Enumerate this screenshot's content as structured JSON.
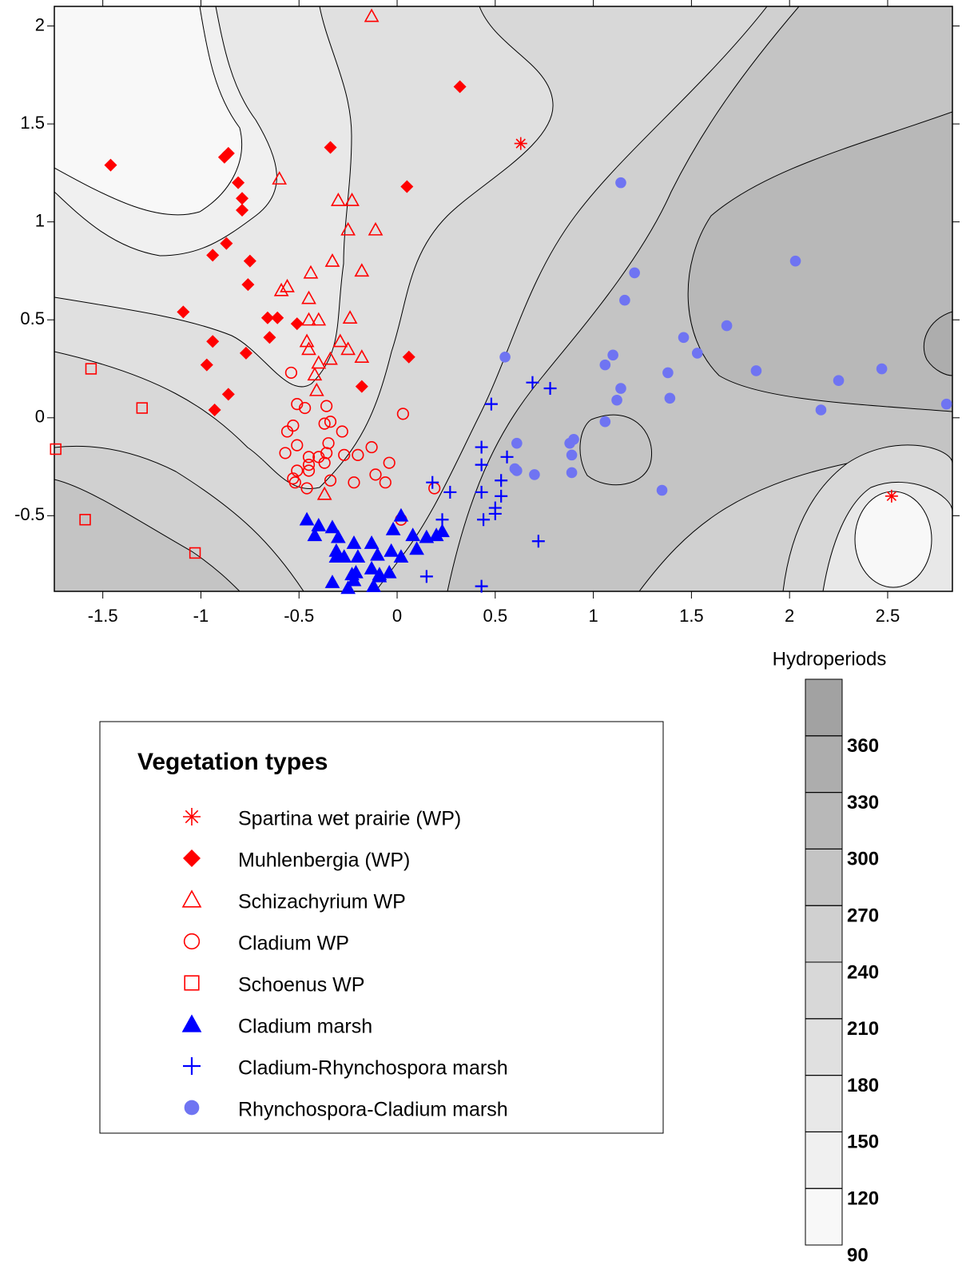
{
  "chart_data": {
    "type": "scatter",
    "xlim": [
      -1.747,
      2.83
    ],
    "ylim": [
      -0.886,
      2.1
    ],
    "xticks": [
      -1.5,
      -1,
      -0.5,
      0,
      0.5,
      1,
      1.5,
      2,
      2.5
    ],
    "yticks": [
      -0.5,
      0,
      0.5,
      1,
      1.5,
      2
    ],
    "legend_title": "Vegetation types",
    "colorbar": {
      "title": "Hydroperiods",
      "lim": [
        90,
        390
      ],
      "ticks": [
        90,
        120,
        150,
        180,
        210,
        240,
        270,
        300,
        330,
        360
      ],
      "colors": [
        "#f8f8f8",
        "#f0f0f0",
        "#e8e8e8",
        "#e0e0e0",
        "#d8d8d8",
        "#d0d0d0",
        "#c4c4c4",
        "#b8b8b8",
        "#adadad",
        "#a2a2a2"
      ]
    },
    "series": [
      {
        "name": "Spartina wet prairie (WP)",
        "color": "#ff0000",
        "marker": "asterisk",
        "x": [
          0.63,
          2.52
        ],
        "y": [
          1.4,
          -0.4
        ]
      },
      {
        "name": "Muhlenbergia (WP)",
        "color": "#ff0000",
        "marker": "diamond",
        "x": [
          -1.46,
          -0.86,
          -0.88,
          -0.81,
          -0.79,
          -0.79,
          -0.87,
          -0.94,
          -0.75,
          -0.76,
          -1.09,
          -0.34,
          0.32,
          0.05,
          -0.66,
          -0.61,
          -0.51,
          -0.65,
          -0.94,
          -0.97,
          -0.77,
          0.06,
          -0.18,
          -0.86,
          -0.93
        ],
        "y": [
          1.29,
          1.35,
          1.33,
          1.2,
          1.12,
          1.06,
          0.89,
          0.83,
          0.8,
          0.68,
          0.54,
          1.38,
          1.69,
          1.18,
          0.51,
          0.51,
          0.48,
          0.41,
          0.39,
          0.27,
          0.33,
          0.31,
          0.16,
          0.12,
          0.04
        ]
      },
      {
        "name": "Schizachyrium WP",
        "color": "#ff0000",
        "marker": "triangle-open",
        "x": [
          -0.13,
          -0.6,
          -0.3,
          -0.23,
          -0.25,
          -0.11,
          -0.33,
          -0.44,
          -0.18,
          -0.56,
          -0.59,
          -0.45,
          -0.45,
          -0.4,
          -0.24,
          -0.46,
          -0.45,
          -0.29,
          -0.25,
          -0.18,
          -0.34,
          -0.42,
          -0.4,
          -0.41,
          -0.37
        ],
        "y": [
          2.05,
          1.22,
          1.11,
          1.11,
          0.96,
          0.96,
          0.8,
          0.74,
          0.75,
          0.67,
          0.65,
          0.61,
          0.5,
          0.5,
          0.51,
          0.39,
          0.35,
          0.39,
          0.35,
          0.31,
          0.3,
          0.22,
          0.28,
          0.14,
          -0.39
        ]
      },
      {
        "name": "Cladium WP",
        "color": "#ff0000",
        "marker": "circle-open",
        "x": [
          -0.54,
          -0.51,
          -0.47,
          -0.36,
          -0.53,
          -0.56,
          -0.37,
          -0.34,
          -0.28,
          -0.51,
          -0.35,
          -0.57,
          -0.45,
          -0.45,
          -0.4,
          -0.36,
          -0.27,
          -0.2,
          -0.13,
          -0.04,
          -0.51,
          -0.53,
          -0.52,
          -0.45,
          -0.37,
          -0.34,
          -0.22,
          -0.11,
          -0.06,
          -0.46,
          0.03,
          0.19,
          0.02
        ],
        "y": [
          0.23,
          0.07,
          0.05,
          0.06,
          -0.04,
          -0.07,
          -0.03,
          -0.02,
          -0.07,
          -0.14,
          -0.13,
          -0.18,
          -0.2,
          -0.24,
          -0.2,
          -0.18,
          -0.19,
          -0.19,
          -0.15,
          -0.23,
          -0.27,
          -0.31,
          -0.33,
          -0.27,
          -0.23,
          -0.32,
          -0.33,
          -0.29,
          -0.33,
          -0.36,
          0.02,
          -0.36,
          -0.52
        ]
      },
      {
        "name": "Schoenus WP",
        "color": "#ff0000",
        "marker": "square-open",
        "x": [
          -1.56,
          -1.3,
          -1.74,
          -1.59,
          -1.03
        ],
        "y": [
          0.25,
          0.05,
          -0.16,
          -0.52,
          -0.69
        ]
      },
      {
        "name": "Cladium marsh",
        "color": "#0000ff",
        "marker": "triangle",
        "x": [
          -0.46,
          -0.4,
          -0.33,
          -0.42,
          -0.3,
          -0.22,
          -0.13,
          -0.31,
          -0.1,
          -0.03,
          0.02,
          -0.02,
          0.1,
          0.02,
          -0.31,
          -0.27,
          -0.2,
          -0.21,
          -0.13,
          -0.09,
          -0.04,
          -0.33,
          -0.23,
          -0.22,
          -0.25,
          -0.12,
          -0.09,
          0.15,
          0.2,
          0.23,
          0.08
        ],
        "y": [
          -0.52,
          -0.55,
          -0.56,
          -0.6,
          -0.61,
          -0.64,
          -0.64,
          -0.68,
          -0.7,
          -0.68,
          -0.5,
          -0.57,
          -0.67,
          -0.71,
          -0.71,
          -0.71,
          -0.71,
          -0.79,
          -0.77,
          -0.81,
          -0.79,
          -0.84,
          -0.8,
          -0.83,
          -0.87,
          -0.86,
          -0.8,
          -0.61,
          -0.6,
          -0.58,
          -0.6
        ]
      },
      {
        "name": "Cladium-Rhynchospora marsh",
        "color": "#0000ff",
        "marker": "plus",
        "x": [
          0.69,
          0.78,
          0.48,
          0.43,
          0.56,
          0.43,
          0.53,
          0.53,
          0.43,
          0.27,
          0.18,
          0.5,
          0.5,
          0.44,
          0.23,
          0.72,
          0.15,
          0.43
        ],
        "y": [
          0.18,
          0.15,
          0.07,
          -0.15,
          -0.2,
          -0.24,
          -0.32,
          -0.4,
          -0.38,
          -0.38,
          -0.33,
          -0.46,
          -0.49,
          -0.52,
          -0.52,
          -0.63,
          -0.81,
          -0.86
        ]
      },
      {
        "name": "Rhynchospora-Cladium marsh",
        "color": "#6f74f2",
        "marker": "circle",
        "x": [
          1.14,
          1.21,
          1.16,
          2.03,
          1.68,
          1.46,
          0.55,
          1.1,
          1.06,
          1.53,
          1.38,
          1.83,
          2.25,
          2.47,
          2.16,
          2.8,
          1.14,
          1.12,
          1.39,
          0.61,
          0.61,
          0.7,
          0.9,
          0.88,
          0.89,
          0.89,
          1.06,
          1.35,
          0.6
        ],
        "y": [
          1.2,
          0.74,
          0.6,
          0.8,
          0.47,
          0.41,
          0.31,
          0.32,
          0.27,
          0.33,
          0.23,
          0.24,
          0.19,
          0.25,
          0.04,
          0.07,
          0.15,
          0.09,
          0.1,
          -0.13,
          -0.27,
          -0.29,
          -0.11,
          -0.13,
          -0.19,
          -0.28,
          -0.02,
          -0.37,
          -0.26
        ]
      }
    ]
  }
}
